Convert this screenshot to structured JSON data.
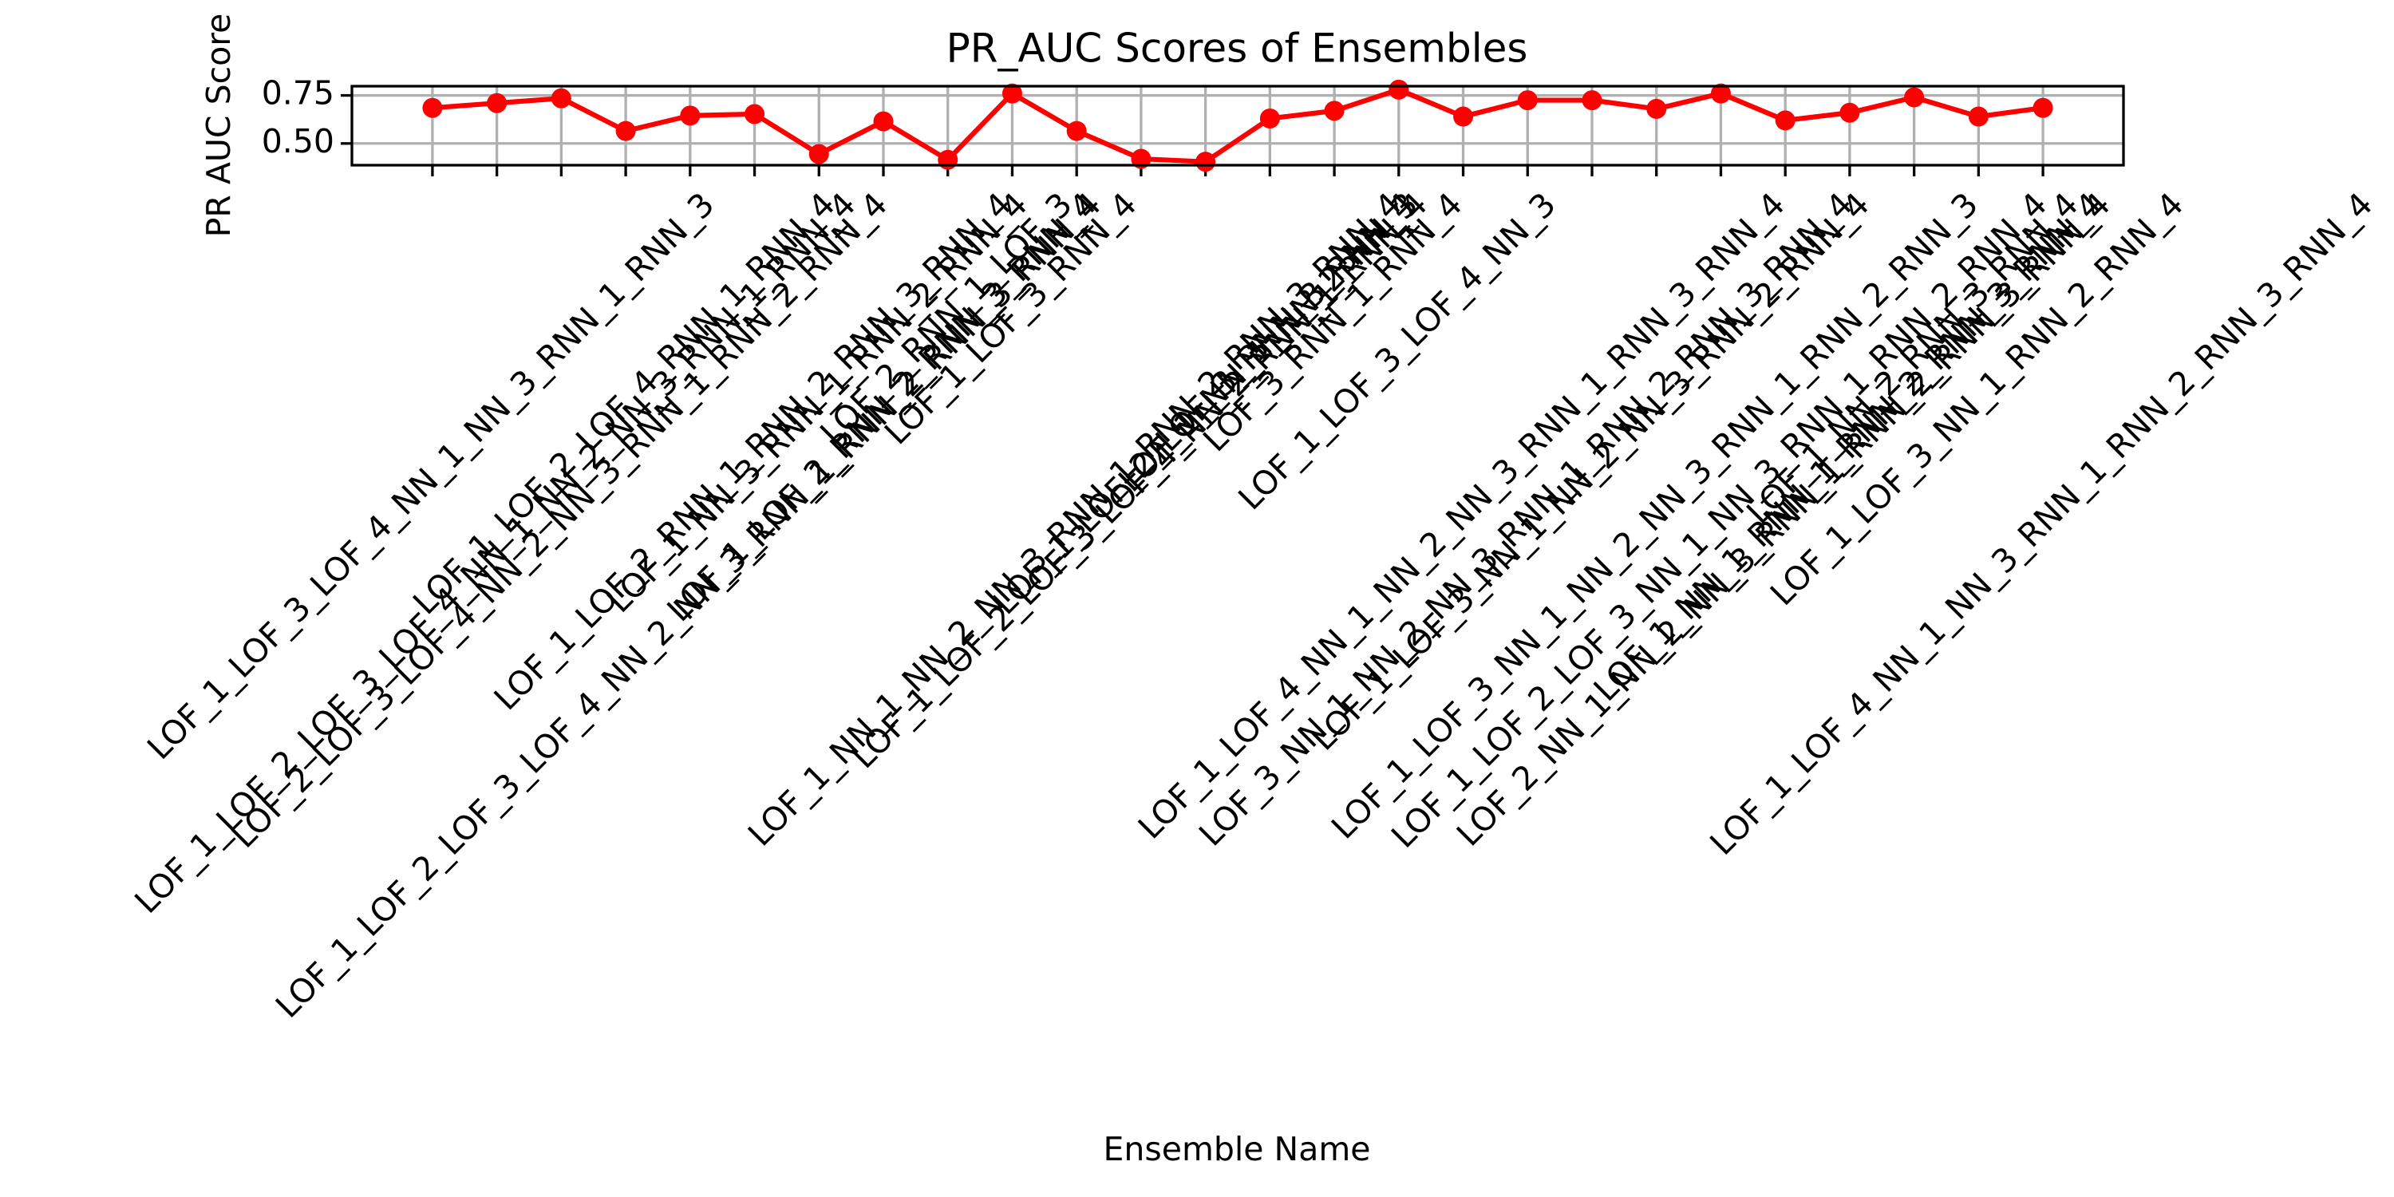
{
  "chart_data": {
    "type": "line",
    "title": "PR_AUC Scores of Ensembles",
    "x_label": "Ensemble Name",
    "y_label": "PR AUC Score",
    "categories": [
      "LOF_1_LOF_3_LOF_4_NN_1_NN_3_RNN_1_RNN_3",
      "LOF_1_LOF_2_LOF_3_LOF_4_NN_1_NN_2_NN_3_RNN_1_RNN_4",
      "LOF_2_LOF_3_LOF_4_NN_2_NN_3_RNN_1_RNN_2_RNN_4",
      "LOF_1_LOF_2_LOF_4_RNN_1_RNN_4",
      "LOF_1_LOF_2_LOF_3_LOF_4_NN_2_NN_3_RNN_1_RNN_2_RNN_3_RNN_4",
      "LOF_1_LOF_2_RNN_1_RNN_2_RNN_3_RNN_4",
      "LOF_1_NN_3_RNN_1_RNN_2_RNN_4",
      "LOF_1_LOF_2_RNN_2_RNN_3_RNN_4",
      "LOF_2_RNN_1_LOF_3",
      "LOF_1_LOF_3_RNN_4",
      "LOF_1_NN_1_NN_2_NN_3_RNN_1_RNN_2_RNN_3_RNN_4",
      "LOF_1_LOF_2_LOF_3_LOF_4_NN_2_RNN_1_RNN_4",
      "LOF_1_LOF_2_LOF_3_RNN_3_RNN_4",
      "LOF_1_NN_1_NN_2_NN_3",
      "LOF_3_RNN_1_RNN_4",
      "LOF_1_LOF_3_LOF_4_NN_3",
      "LOF_1_LOF_4_NN_1_NN_2_NN_3_RNN_1_RNN_3_RNN_4",
      "LOF_3_NN_1_NN_2_NN_3_RNN_1_RNN_2_RNN_3_RNN_4",
      "LOF_1_LOF_3_NN_1_NN_2_NN_3_RNN_2_RNN_4",
      "LOF_1_LOF_3_NN_1_NN_2_NN_3_RNN_1_RNN_2_RNN_3",
      "LOF_1_LOF_2_LOF_3_NN_1_NN_3_RNN_1_RNN_2_RNN_4",
      "LOF_2_NN_1_NN_2_NN_3_RNN_1_RNN_2_RNN_3_RNN_4",
      "LOF_1_NN_1_RNN_1_RNN_2_RNN_3_RNN_4",
      "LOF_1_NN_2_RNN_3_RNN_4",
      "LOF_1_LOF_3_NN_1_RNN_2_RNN_4",
      "LOF_1_LOF_4_NN_1_NN_3_RNN_1_RNN_2_RNN_3_RNN_4"
    ],
    "series": [
      {
        "name": "PR AUC Score",
        "color": "#ff0000",
        "values": [
          0.685,
          0.71,
          0.735,
          0.565,
          0.645,
          0.653,
          0.445,
          0.615,
          0.415,
          0.76,
          0.565,
          0.42,
          0.405,
          0.63,
          0.67,
          0.78,
          0.64,
          0.725,
          0.725,
          0.68,
          0.76,
          0.62,
          0.66,
          0.74,
          0.64,
          0.685
        ]
      }
    ],
    "ylim": [
      0.387,
      0.798
    ],
    "yticks": [
      {
        "value": 0.5,
        "label": "0.50"
      },
      0.75
    ],
    "grid": true
  }
}
